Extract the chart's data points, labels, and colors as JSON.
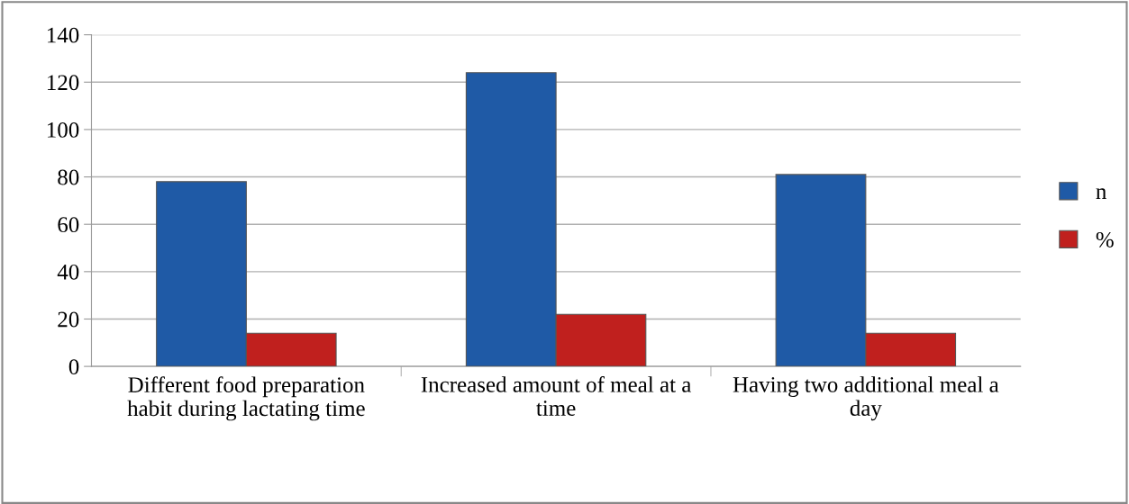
{
  "chart_data": {
    "type": "bar",
    "categories": [
      "Different food preparation habit during lactating time",
      "Increased amount of meal at a time",
      "Having two additional meal a day"
    ],
    "series": [
      {
        "name": "n",
        "color": "#1f5aa6",
        "values": [
          78,
          124,
          81
        ]
      },
      {
        "name": "%",
        "color": "#c0201e",
        "values": [
          14,
          22,
          14
        ]
      }
    ],
    "ylim": [
      0,
      140
    ],
    "yticks": [
      0,
      20,
      40,
      60,
      80,
      100,
      120,
      140
    ],
    "grid": "y",
    "legend": "right"
  }
}
